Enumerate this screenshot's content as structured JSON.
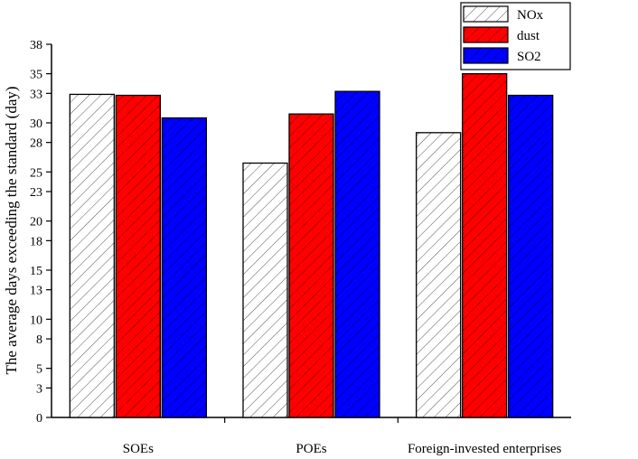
{
  "chart_data": {
    "type": "bar",
    "title": "",
    "xlabel": "",
    "ylabel": "The average days exceeding the standard (day)",
    "ylim": [
      0,
      38
    ],
    "yticks": [
      0,
      3,
      5,
      8,
      10,
      13,
      15,
      18,
      20,
      23,
      25,
      28,
      30,
      33,
      35,
      38
    ],
    "categories": [
      "SOEs",
      "POEs",
      "Foreign-invested enterprises"
    ],
    "series": [
      {
        "name": "NOx",
        "values": [
          32.9,
          25.9,
          29.0
        ],
        "color": "#ffffff",
        "pattern": "hatch"
      },
      {
        "name": "dust",
        "values": [
          32.8,
          30.9,
          35.0
        ],
        "color": "#ff0000",
        "pattern": "hatch"
      },
      {
        "name": "SO2",
        "values": [
          30.5,
          33.2,
          32.8
        ],
        "color": "#0000ff",
        "pattern": "hatch"
      }
    ],
    "legend_position": "top-right",
    "grid": false
  }
}
